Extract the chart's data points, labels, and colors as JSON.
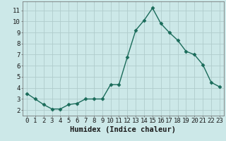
{
  "x": [
    0,
    1,
    2,
    3,
    4,
    5,
    6,
    7,
    8,
    9,
    10,
    11,
    12,
    13,
    14,
    15,
    16,
    17,
    18,
    19,
    20,
    21,
    22,
    23
  ],
  "y": [
    3.5,
    3.0,
    2.5,
    2.1,
    2.1,
    2.5,
    2.6,
    3.0,
    3.0,
    3.0,
    4.3,
    4.3,
    6.8,
    9.2,
    10.1,
    11.2,
    9.8,
    9.0,
    8.3,
    7.3,
    7.0,
    6.1,
    4.5,
    4.1
  ],
  "xlabel": "Humidex (Indice chaleur)",
  "ylim": [
    1.5,
    11.8
  ],
  "xlim": [
    -0.5,
    23.5
  ],
  "yticks": [
    2,
    3,
    4,
    5,
    6,
    7,
    8,
    9,
    10,
    11
  ],
  "xtick_labels": [
    "0",
    "1",
    "2",
    "3",
    "4",
    "5",
    "6",
    "7",
    "8",
    "9",
    "10",
    "11",
    "12",
    "13",
    "14",
    "15",
    "16",
    "17",
    "18",
    "19",
    "20",
    "21",
    "22",
    "23"
  ],
  "line_color": "#1a6b5a",
  "marker": "D",
  "markersize": 2.5,
  "bg_color": "#cce8e8",
  "grid_color": "#b0cccc",
  "xlabel_fontsize": 7.5,
  "tick_fontsize": 6.5
}
